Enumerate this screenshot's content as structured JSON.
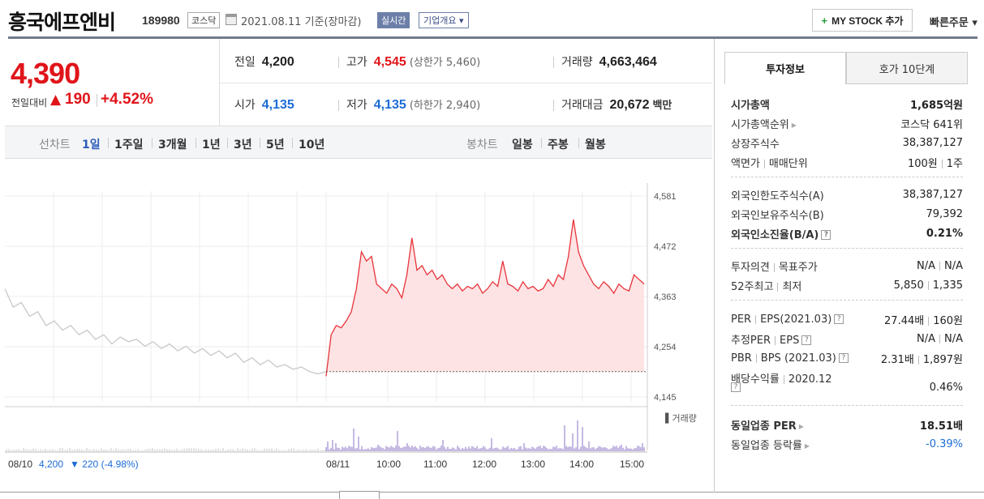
{
  "header": {
    "company_name": "흥국에프엔비",
    "code": "189980",
    "market": "코스닥",
    "date_text": "2021.08.11  기준(장마감)",
    "live_label": "실시간",
    "overview_label": "기업개요 ▾",
    "mystock_plus": "+",
    "mystock_label": "MY STOCK 추가",
    "quick_order": "빠른주문 ▾"
  },
  "summary": {
    "price": "4,390",
    "change_label": "전일대비",
    "change_arrow": "▲",
    "change_value": "190",
    "change_pct": "+4.52%",
    "prev_close_label": "전일",
    "prev_close": "4,200",
    "high_label": "고가",
    "high": "4,545",
    "upper_limit": "(상한가 5,460)",
    "volume_label": "거래량",
    "volume": "4,663,464",
    "open_label": "시가",
    "open": "4,135",
    "low_label": "저가",
    "low": "4,135",
    "lower_limit": "(하한가 2,940)",
    "amount_label": "거래대금",
    "amount": "20,672",
    "amount_unit": "백만"
  },
  "chart_tabs": {
    "line_label": "선차트",
    "line_periods": [
      "1일",
      "1주일",
      "3개월",
      "1년",
      "3년",
      "5년",
      "10년"
    ],
    "candle_label": "봉차트",
    "candle_periods": [
      "일봉",
      "주봉",
      "월봉"
    ]
  },
  "chart_data": {
    "type": "line",
    "y_ticks": [
      "4,581",
      "4,472",
      "4,363",
      "4,254",
      "4,145"
    ],
    "ylim": [
      4145,
      4581
    ],
    "x_ticks": [
      "08/10",
      "08/11",
      "10:00",
      "11:00",
      "12:00",
      "13:00",
      "14:00",
      "15:00"
    ],
    "baseline": 4200,
    "prev_day_series": [
      4380,
      4340,
      4350,
      4320,
      4330,
      4300,
      4310,
      4290,
      4300,
      4280,
      4290,
      4270,
      4280,
      4260,
      4275,
      4265,
      4270,
      4255,
      4265,
      4250,
      4260,
      4245,
      4255,
      4240,
      4250,
      4235,
      4245,
      4230,
      4240,
      4220,
      4230,
      4215,
      4225,
      4210,
      4215,
      4205,
      4210,
      4200,
      4195,
      4200
    ],
    "today_series": [
      4190,
      4280,
      4300,
      4295,
      4310,
      4330,
      4380,
      4460,
      4440,
      4450,
      4390,
      4380,
      4370,
      4390,
      4380,
      4360,
      4410,
      4490,
      4420,
      4430,
      4410,
      4420,
      4400,
      4410,
      4390,
      4380,
      4390,
      4375,
      4385,
      4380,
      4390,
      4370,
      4380,
      4395,
      4385,
      4440,
      4390,
      4385,
      4375,
      4395,
      4380,
      4385,
      4375,
      4380,
      4400,
      4385,
      4410,
      4400,
      4450,
      4530,
      4460,
      4430,
      4410,
      4390,
      4380,
      4395,
      4385,
      4370,
      4390,
      4380,
      4375,
      4410,
      4400,
      4390
    ],
    "volume_label": "▌거래량",
    "footer_prev_close": "4,200",
    "footer_change": "▼ 220 (-4.98%)"
  },
  "invest": {
    "tab_active": "투자정보",
    "tab_inactive": "호가 10단계",
    "market_cap_label": "시가총액",
    "market_cap": "1,685억원",
    "cap_rank_label": "시가총액순위",
    "cap_rank": "코스닥 641위",
    "shares_label": "상장주식수",
    "shares": "38,387,127",
    "par_label": "액면가",
    "trade_unit_label": "매매단위",
    "par": "100원",
    "trade_unit": "1주",
    "foreign_limit_label": "외국인한도주식수(A)",
    "foreign_limit": "38,387,127",
    "foreign_hold_label": "외국인보유주식수(B)",
    "foreign_hold": "79,392",
    "foreign_ratio_label": "외국인소진율(B/A)",
    "foreign_ratio": "0.21%",
    "opinion_label": "투자의견",
    "target_label": "목표주가",
    "opinion": "N/A",
    "target": "N/A",
    "w52_label": "52주최고",
    "w52_low_label": "최저",
    "w52_high": "5,850",
    "w52_low": "1,335",
    "per_label": "PER",
    "eps_label": "EPS(2021.03)",
    "per": "27.44배",
    "eps": "160원",
    "est_per_label": "추정PER",
    "est_eps_label": "EPS",
    "est_per": "N/A",
    "est_eps": "N/A",
    "pbr_label": "PBR",
    "bps_label": "BPS (2021.03)",
    "pbr": "2.31배",
    "bps": "1,897원",
    "div_label": "배당수익률",
    "div_year": "2020.12",
    "div": "0.46%",
    "sector_per_label": "동일업종 PER",
    "sector_per": "18.51배",
    "sector_change_label": "동일업종 등락률",
    "sector_change": "-0.39%",
    "q": "?"
  }
}
